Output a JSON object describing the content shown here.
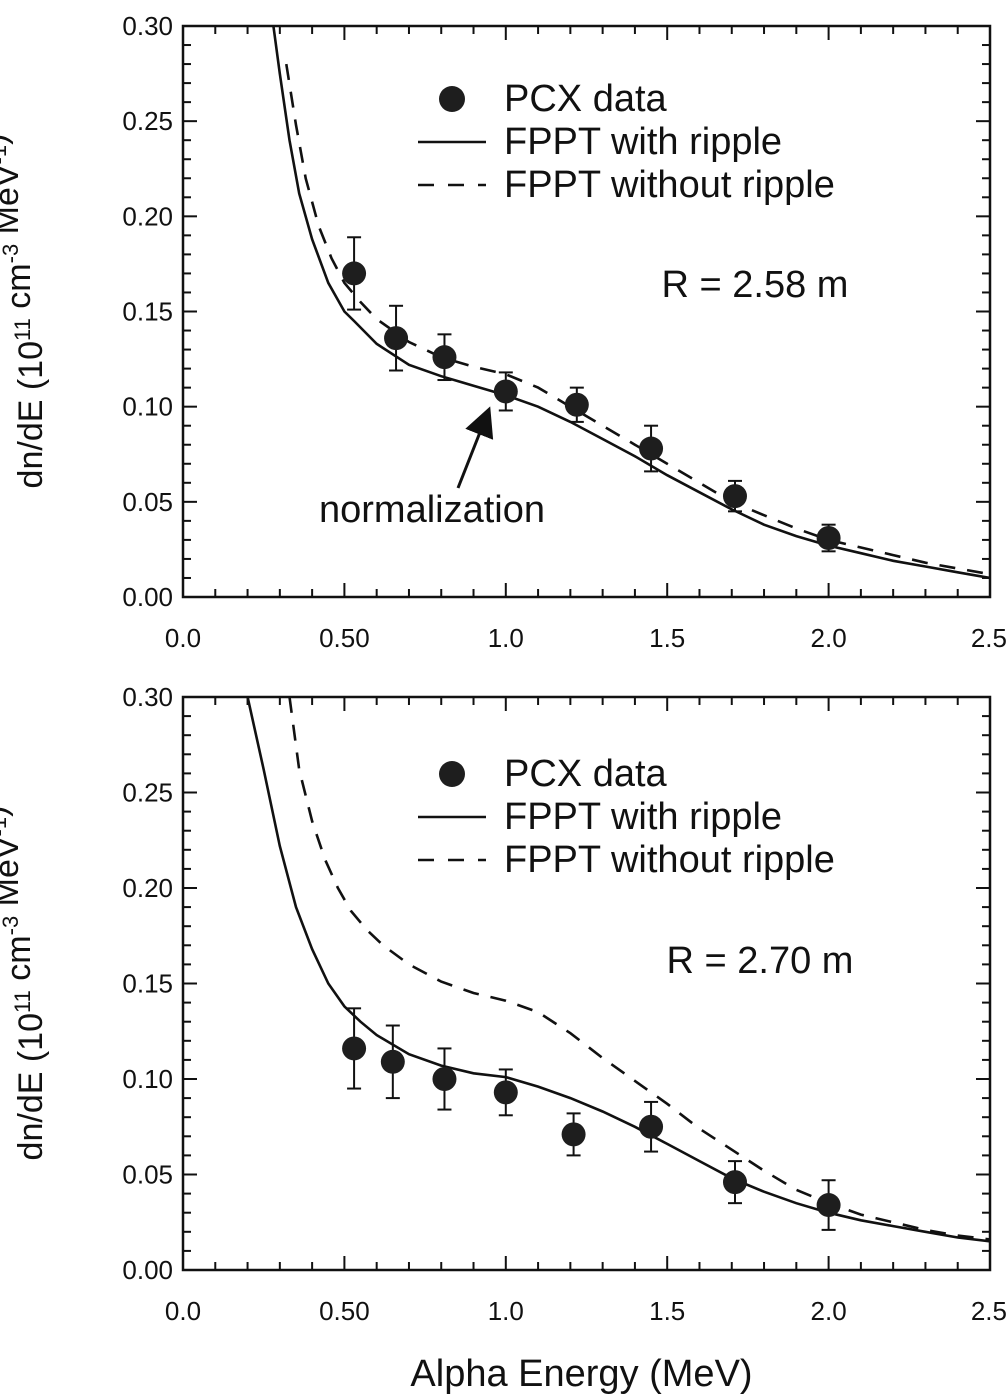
{
  "chart_data": [
    {
      "type": "scatter",
      "title": "",
      "xlabel": "",
      "ylabel": {
        "prefix": "dn/dE (10",
        "exp1": "11",
        "mid": " cm",
        "exp2": "-3",
        "mid2": " MeV",
        "exp3": "-1",
        "suffix": ")"
      },
      "xlim": [
        0.0,
        2.5
      ],
      "ylim": [
        0.0,
        0.3
      ],
      "x_ticks": [
        "0.0",
        "0.50",
        "1.0",
        "1.5",
        "2.0",
        "2.5"
      ],
      "x_tick_values": [
        0.0,
        0.5,
        1.0,
        1.5,
        2.0,
        2.5
      ],
      "y_ticks": [
        "0.00",
        "0.05",
        "0.10",
        "0.15",
        "0.20",
        "0.25",
        "0.30"
      ],
      "y_tick_values": [
        0.0,
        0.05,
        0.1,
        0.15,
        0.2,
        0.25,
        0.3
      ],
      "legend": {
        "placement": "top-right",
        "entries": [
          "PCX data",
          "FPPT with ripple",
          "FPPT without ripple"
        ]
      },
      "annotations": [
        "R = 2.58 m",
        "normalization"
      ],
      "series": [
        {
          "name": "PCX data",
          "kind": "points",
          "x": [
            0.53,
            0.66,
            0.81,
            1.0,
            1.22,
            1.45,
            1.71,
            2.0
          ],
          "y": [
            0.17,
            0.136,
            0.126,
            0.108,
            0.101,
            0.078,
            0.053,
            0.031
          ],
          "err": [
            0.019,
            0.017,
            0.012,
            0.01,
            0.009,
            0.012,
            0.008,
            0.007
          ]
        },
        {
          "name": "FPPT with ripple",
          "kind": "line-solid",
          "x": [
            0.28,
            0.3,
            0.33,
            0.36,
            0.4,
            0.45,
            0.5,
            0.53,
            0.6,
            0.7,
            0.8,
            0.9,
            1.0,
            1.1,
            1.2,
            1.3,
            1.4,
            1.5,
            1.6,
            1.7,
            1.8,
            1.9,
            2.0,
            2.1,
            2.2,
            2.3,
            2.4,
            2.5
          ],
          "y": [
            0.3,
            0.275,
            0.24,
            0.212,
            0.188,
            0.165,
            0.15,
            0.145,
            0.133,
            0.122,
            0.116,
            0.111,
            0.106,
            0.1,
            0.092,
            0.083,
            0.074,
            0.064,
            0.055,
            0.046,
            0.038,
            0.032,
            0.027,
            0.023,
            0.019,
            0.016,
            0.013,
            0.01
          ]
        },
        {
          "name": "FPPT without ripple",
          "kind": "line-dashed",
          "x": [
            0.32,
            0.35,
            0.38,
            0.42,
            0.46,
            0.5,
            0.55,
            0.6,
            0.7,
            0.8,
            0.9,
            1.0,
            1.1,
            1.2,
            1.3,
            1.4,
            1.5,
            1.6,
            1.7,
            1.8,
            1.9,
            2.0,
            2.1,
            2.2,
            2.3,
            2.4,
            2.5
          ],
          "y": [
            0.28,
            0.248,
            0.22,
            0.195,
            0.178,
            0.165,
            0.155,
            0.146,
            0.134,
            0.126,
            0.121,
            0.117,
            0.11,
            0.1,
            0.09,
            0.08,
            0.07,
            0.06,
            0.05,
            0.043,
            0.036,
            0.03,
            0.026,
            0.022,
            0.018,
            0.015,
            0.012
          ]
        }
      ]
    },
    {
      "type": "scatter",
      "title": "",
      "xlabel": "Alpha Energy (MeV)",
      "ylabel": {
        "prefix": "dn/dE (10",
        "exp1": "11",
        "mid": " cm",
        "exp2": "-3",
        "mid2": " MeV",
        "exp3": "-1",
        "suffix": ")"
      },
      "xlim": [
        0.0,
        2.5
      ],
      "ylim": [
        0.0,
        0.3
      ],
      "x_ticks": [
        "0.0",
        "0.50",
        "1.0",
        "1.5",
        "2.0",
        "2.5"
      ],
      "x_tick_values": [
        0.0,
        0.5,
        1.0,
        1.5,
        2.0,
        2.5
      ],
      "y_ticks": [
        "0.00",
        "0.05",
        "0.10",
        "0.15",
        "0.20",
        "0.25",
        "0.30"
      ],
      "y_tick_values": [
        0.0,
        0.05,
        0.1,
        0.15,
        0.2,
        0.25,
        0.3
      ],
      "legend": {
        "placement": "top-right",
        "entries": [
          "PCX data",
          "FPPT with ripple",
          "FPPT without ripple"
        ]
      },
      "annotations": [
        "R = 2.70 m"
      ],
      "series": [
        {
          "name": "PCX data",
          "kind": "points",
          "x": [
            0.53,
            0.65,
            0.81,
            1.0,
            1.21,
            1.45,
            1.71,
            2.0
          ],
          "y": [
            0.116,
            0.109,
            0.1,
            0.093,
            0.071,
            0.075,
            0.046,
            0.034
          ],
          "err": [
            0.021,
            0.019,
            0.016,
            0.012,
            0.011,
            0.013,
            0.011,
            0.013
          ]
        },
        {
          "name": "FPPT with ripple",
          "kind": "line-solid",
          "x": [
            0.2,
            0.25,
            0.3,
            0.35,
            0.4,
            0.45,
            0.5,
            0.55,
            0.6,
            0.7,
            0.8,
            0.9,
            1.0,
            1.1,
            1.2,
            1.3,
            1.4,
            1.5,
            1.6,
            1.7,
            1.8,
            1.9,
            2.0,
            2.1,
            2.2,
            2.3,
            2.4,
            2.5
          ],
          "y": [
            0.3,
            0.262,
            0.222,
            0.19,
            0.168,
            0.15,
            0.138,
            0.13,
            0.123,
            0.113,
            0.107,
            0.103,
            0.101,
            0.096,
            0.09,
            0.083,
            0.075,
            0.066,
            0.057,
            0.048,
            0.041,
            0.035,
            0.03,
            0.026,
            0.023,
            0.02,
            0.017,
            0.015
          ]
        },
        {
          "name": "FPPT without ripple",
          "kind": "line-dashed",
          "x": [
            0.33,
            0.36,
            0.4,
            0.44,
            0.48,
            0.52,
            0.57,
            0.62,
            0.7,
            0.8,
            0.9,
            1.0,
            1.1,
            1.2,
            1.3,
            1.4,
            1.5,
            1.6,
            1.7,
            1.8,
            1.9,
            2.0,
            2.1,
            2.2,
            2.3,
            2.4,
            2.5
          ],
          "y": [
            0.3,
            0.262,
            0.235,
            0.215,
            0.2,
            0.188,
            0.178,
            0.17,
            0.16,
            0.151,
            0.145,
            0.141,
            0.135,
            0.124,
            0.111,
            0.099,
            0.087,
            0.074,
            0.063,
            0.052,
            0.042,
            0.035,
            0.029,
            0.025,
            0.021,
            0.018,
            0.016
          ]
        }
      ]
    }
  ]
}
